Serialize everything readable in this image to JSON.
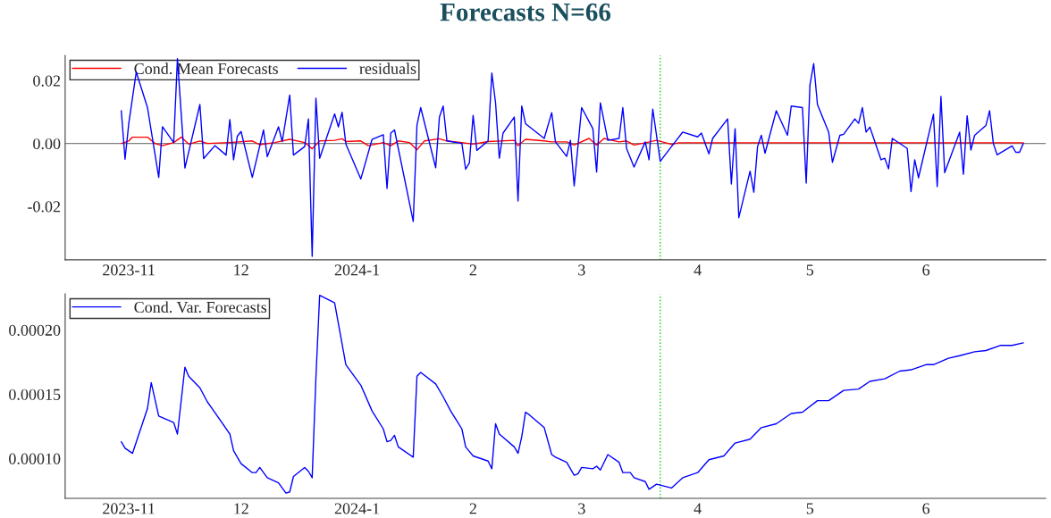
{
  "chart_data": [
    {
      "type": "line",
      "title": "Forecasts N=66",
      "legend": "top left",
      "grid": false,
      "marker": "none",
      "line_style": "solid",
      "xlim": [
        "2023-10-15",
        "2024-07-03"
      ],
      "xticks": [
        {
          "value": "2023-11-01",
          "label": "2023-11"
        },
        {
          "value": "2023-12-01",
          "label": "12"
        },
        {
          "value": "2024-01-01",
          "label": "2024-1"
        },
        {
          "value": "2024-02-01",
          "label": "2"
        },
        {
          "value": "2024-03-01",
          "label": "3"
        },
        {
          "value": "2024-04-01",
          "label": "4"
        },
        {
          "value": "2024-05-01",
          "label": "5"
        },
        {
          "value": "2024-06-01",
          "label": "6"
        }
      ],
      "ylim": [
        -0.037,
        0.028
      ],
      "yticks": [
        {
          "value": -0.02,
          "label": "-0.02"
        },
        {
          "value": 0,
          "label": "0.00"
        },
        {
          "value": 0.02,
          "label": "0.02"
        }
      ],
      "ref_lines": [
        {
          "axis": "y",
          "value": 0,
          "color": "#808080",
          "line_style": "solid"
        },
        {
          "axis": "x",
          "value": "2024-03-22",
          "color": "#00cc00",
          "line_style": "dotted"
        }
      ],
      "series": [
        {
          "name": "Cond. Mean Forecasts",
          "color": "#ff0000",
          "x": [
            "2023-10-30",
            "2023-11-01",
            "2023-11-02",
            "2023-11-06",
            "2023-11-08",
            "2023-11-10",
            "2023-11-13",
            "2023-11-15",
            "2023-11-17",
            "2023-11-20",
            "2023-11-22",
            "2023-11-28",
            "2023-12-04",
            "2023-12-06",
            "2023-12-10",
            "2023-12-14",
            "2023-12-18",
            "2023-12-20",
            "2023-12-22",
            "2023-12-26",
            "2023-12-28",
            "2023-12-29",
            "2024-01-02",
            "2024-01-04",
            "2024-01-08",
            "2024-01-10",
            "2024-01-12",
            "2024-01-15",
            "2024-01-17",
            "2024-01-19",
            "2024-01-23",
            "2024-01-25",
            "2024-01-29",
            "2024-02-01",
            "2024-02-05",
            "2024-02-12",
            "2024-02-13",
            "2024-02-15",
            "2024-02-20",
            "2024-02-22",
            "2024-02-26",
            "2024-02-28",
            "2024-03-03",
            "2024-03-05",
            "2024-03-07",
            "2024-03-11",
            "2024-03-13",
            "2024-03-15",
            "2024-03-18",
            "2024-03-21",
            "2024-03-25",
            "2024-03-27",
            "2024-06-27"
          ],
          "values": [
            0.0,
            0.0008,
            0.002,
            0.002,
            0.0,
            -0.0007,
            0.0003,
            0.002,
            -0.0002,
            0.0008,
            0.0,
            0.0003,
            0.0008,
            -0.0004,
            0.0003,
            0.0013,
            0.0003,
            -0.0017,
            0.0008,
            0.001,
            0.0015,
            0.0006,
            0.0008,
            -0.0007,
            0.0003,
            -0.0007,
            0.0008,
            0.0003,
            -0.002,
            0.0008,
            0.0015,
            0.0008,
            0.0003,
            -0.0002,
            0.0006,
            0.001,
            -0.0007,
            0.0013,
            0.0008,
            0.0005,
            0.0005,
            -0.0005,
            0.0016,
            -0.0005,
            0.0016,
            0.0005,
            0.0008,
            -0.0005,
            0.0002,
            0.001,
            -0.0003,
            0.0002,
            0.0002
          ]
        },
        {
          "name": "residuals",
          "color": "#0000ff",
          "x": [
            "2023-10-30",
            "2023-10-31",
            "2023-11-01",
            "2023-11-03",
            "2023-11-06",
            "2023-11-09",
            "2023-11-10",
            "2023-11-13",
            "2023-11-14",
            "2023-11-16",
            "2023-11-20",
            "2023-11-21",
            "2023-11-24",
            "2023-11-27",
            "2023-11-28",
            "2023-11-29",
            "2023-11-30",
            "2023-12-01",
            "2023-12-04",
            "2023-12-07",
            "2023-12-08",
            "2023-12-11",
            "2023-12-12",
            "2023-12-14",
            "2023-12-15",
            "2023-12-18",
            "2023-12-19",
            "2023-12-20",
            "2023-12-21",
            "2023-12-22",
            "2023-12-26",
            "2023-12-27",
            "2023-12-28",
            "2023-12-29",
            "2024-01-02",
            "2024-01-05",
            "2024-01-08",
            "2024-01-09",
            "2024-01-10",
            "2024-01-11",
            "2024-01-16",
            "2024-01-17",
            "2024-01-18",
            "2024-01-22",
            "2024-01-23",
            "2024-01-24",
            "2024-01-25",
            "2024-01-29",
            "2024-01-30",
            "2024-01-31",
            "2024-02-01",
            "2024-02-02",
            "2024-02-05",
            "2024-02-06",
            "2024-02-07",
            "2024-02-08",
            "2024-02-09",
            "2024-02-12",
            "2024-02-13",
            "2024-02-14",
            "2024-02-15",
            "2024-02-20",
            "2024-02-22",
            "2024-02-23",
            "2024-02-26",
            "2024-02-27",
            "2024-02-28",
            "2024-03-01",
            "2024-03-04",
            "2024-03-05",
            "2024-03-06",
            "2024-03-08",
            "2024-03-11",
            "2024-03-12",
            "2024-03-13",
            "2024-03-15",
            "2024-03-18",
            "2024-03-19",
            "2024-03-20",
            "2024-03-22",
            "2024-03-25",
            "2024-03-28",
            "2024-04-01",
            "2024-04-02",
            "2024-04-04",
            "2024-04-05",
            "2024-04-09",
            "2024-04-10",
            "2024-04-11",
            "2024-04-12",
            "2024-04-15",
            "2024-04-16",
            "2024-04-17",
            "2024-04-18",
            "2024-04-19",
            "2024-04-22",
            "2024-04-25",
            "2024-04-26",
            "2024-04-29",
            "2024-04-30",
            "2024-05-01",
            "2024-05-02",
            "2024-05-03",
            "2024-05-06",
            "2024-05-07",
            "2024-05-09",
            "2024-05-10",
            "2024-05-13",
            "2024-05-14",
            "2024-05-15",
            "2024-05-16",
            "2024-05-17",
            "2024-05-20",
            "2024-05-21",
            "2024-05-22",
            "2024-05-23",
            "2024-05-27",
            "2024-05-28",
            "2024-05-29",
            "2024-05-30",
            "2024-06-03",
            "2024-06-04",
            "2024-06-05",
            "2024-06-06",
            "2024-06-10",
            "2024-06-11",
            "2024-06-12",
            "2024-06-13",
            "2024-06-14",
            "2024-06-17",
            "2024-06-18",
            "2024-06-19",
            "2024-06-20",
            "2024-06-24",
            "2024-06-25",
            "2024-06-26",
            "2024-06-27"
          ],
          "values": [
            0.0104,
            -0.005,
            0.0064,
            0.0227,
            0.0114,
            -0.0108,
            0.0053,
            0.0003,
            0.027,
            -0.0078,
            0.0124,
            -0.0048,
            -0.0007,
            -0.0037,
            0.0076,
            -0.0052,
            0.0023,
            0.0038,
            -0.0108,
            0.0043,
            -0.0042,
            0.0053,
            0.0006,
            0.0154,
            -0.0037,
            -0.001,
            0.0078,
            -0.0359,
            0.0144,
            -0.0047,
            0.0094,
            0.0053,
            0.0099,
            -0.0002,
            -0.0113,
            0.0013,
            0.0028,
            -0.0143,
            0.0033,
            0.0043,
            -0.0248,
            0.0058,
            0.0114,
            -0.0077,
            0.0084,
            0.0119,
            0.0008,
            0.0,
            -0.0082,
            -0.0062,
            0.0089,
            -0.0022,
            0.0008,
            0.0224,
            0.0129,
            -0.0047,
            0.0033,
            0.0084,
            -0.0183,
            0.0119,
            0.0063,
            0.0016,
            0.0098,
            0.0005,
            -0.0041,
            0.001,
            -0.0135,
            0.0114,
            0.0047,
            -0.0091,
            0.0129,
            0.001,
            0.0016,
            0.0114,
            -0.0016,
            -0.0075,
            0.0005,
            -0.0052,
            0.0109,
            -0.0057,
            -0.001,
            0.0036,
            0.0021,
            0.0033,
            -0.0033,
            0.0016,
            0.0078,
            -0.0129,
            0.0047,
            -0.0236,
            -0.0088,
            -0.0155,
            -0.001,
            0.0026,
            -0.0031,
            0.0104,
            0.0026,
            0.0119,
            0.0114,
            -0.0126,
            0.0186,
            0.0254,
            0.0124,
            0.0036,
            -0.006,
            0.0026,
            0.0029,
            0.0078,
            0.0064,
            0.0114,
            0.0036,
            0.0052,
            -0.0052,
            -0.0047,
            -0.0081,
            0.0016,
            -0.0016,
            -0.0153,
            -0.0052,
            -0.0109,
            0.0093,
            -0.0137,
            0.015,
            -0.0093,
            0.0036,
            -0.0098,
            0.0088,
            -0.0021,
            0.0026,
            0.0057,
            0.0104,
            0.0,
            -0.0036,
            -0.0008,
            -0.0028,
            -0.0028,
            0.0
          ]
        }
      ]
    },
    {
      "type": "line",
      "legend": "top left",
      "grid": false,
      "marker": "none",
      "line_style": "solid",
      "xlim": [
        "2023-10-15",
        "2024-07-03"
      ],
      "xticks": [
        {
          "value": "2023-11-01",
          "label": "2023-11"
        },
        {
          "value": "2023-12-01",
          "label": "12"
        },
        {
          "value": "2024-01-01",
          "label": "2024-1"
        },
        {
          "value": "2024-02-01",
          "label": "2"
        },
        {
          "value": "2024-03-01",
          "label": "3"
        },
        {
          "value": "2024-04-01",
          "label": "4"
        },
        {
          "value": "2024-05-01",
          "label": "5"
        },
        {
          "value": "2024-06-01",
          "label": "6"
        }
      ],
      "ylim": [
        6.9e-05,
        0.000228
      ],
      "yticks": [
        {
          "value": 0.0001,
          "label": "0.00010"
        },
        {
          "value": 0.00015,
          "label": "0.00015"
        },
        {
          "value": 0.0002,
          "label": "0.00020"
        }
      ],
      "ref_lines": [
        {
          "axis": "x",
          "value": "2024-03-22",
          "color": "#00cc00",
          "line_style": "dotted"
        }
      ],
      "series": [
        {
          "name": "Cond. Var. Forecasts",
          "color": "#0000ff",
          "x": [
            "2023-10-30",
            "2023-10-31",
            "2023-11-02",
            "2023-11-06",
            "2023-11-07",
            "2023-11-09",
            "2023-11-13",
            "2023-11-14",
            "2023-11-16",
            "2023-11-17",
            "2023-11-20",
            "2023-11-22",
            "2023-11-23",
            "2023-11-28",
            "2023-11-29",
            "2023-12-01",
            "2023-12-04",
            "2023-12-05",
            "2023-12-06",
            "2023-12-08",
            "2023-12-11",
            "2023-12-13",
            "2023-12-14",
            "2023-12-15",
            "2023-12-18",
            "2023-12-19",
            "2023-12-20",
            "2023-12-21",
            "2023-12-22",
            "2023-12-26",
            "2023-12-29",
            "2024-01-02",
            "2024-01-05",
            "2024-01-08",
            "2024-01-09",
            "2024-01-10",
            "2024-01-11",
            "2024-01-12",
            "2024-01-16",
            "2024-01-17",
            "2024-01-18",
            "2024-01-22",
            "2024-01-24",
            "2024-01-26",
            "2024-01-29",
            "2024-01-30",
            "2024-02-01",
            "2024-02-05",
            "2024-02-06",
            "2024-02-07",
            "2024-02-08",
            "2024-02-12",
            "2024-02-13",
            "2024-02-14",
            "2024-02-15",
            "2024-02-16",
            "2024-02-20",
            "2024-02-22",
            "2024-02-23",
            "2024-02-26",
            "2024-02-28",
            "2024-02-29",
            "2024-03-01",
            "2024-03-04",
            "2024-03-05",
            "2024-03-06",
            "2024-03-08",
            "2024-03-11",
            "2024-03-12",
            "2024-03-14",
            "2024-03-15",
            "2024-03-18",
            "2024-03-19",
            "2024-03-21",
            "2024-03-25",
            "2024-03-28",
            "2024-04-01",
            "2024-04-04",
            "2024-04-08",
            "2024-04-11",
            "2024-04-15",
            "2024-04-18",
            "2024-04-22",
            "2024-04-26",
            "2024-04-29",
            "2024-05-03",
            "2024-05-06",
            "2024-05-10",
            "2024-05-14",
            "2024-05-17",
            "2024-05-21",
            "2024-05-25",
            "2024-05-28",
            "2024-06-01",
            "2024-06-03",
            "2024-06-07",
            "2024-06-10",
            "2024-06-14",
            "2024-06-17",
            "2024-06-21",
            "2024-06-24",
            "2024-06-27"
          ],
          "values": [
            0.000113,
            0.000108,
            0.000104,
            0.000139,
            0.000159,
            0.000133,
            0.000128,
            0.000119,
            0.000171,
            0.000164,
            0.000155,
            0.000144,
            0.00014,
            0.000119,
            0.000106,
            9.6e-05,
            8.9e-05,
            8.9e-05,
            9.3e-05,
            8.5e-05,
            8.1e-05,
            7.3e-05,
            7.4e-05,
            8.6e-05,
            9.3e-05,
            9e-05,
            8.5e-05,
            0.000163,
            0.000227,
            0.000221,
            0.000173,
            0.000157,
            0.000137,
            0.000123,
            0.000113,
            0.000114,
            0.000118,
            0.000109,
            0.000101,
            0.000164,
            0.000167,
            0.000158,
            0.000148,
            0.000137,
            0.000123,
            0.000109,
            0.000102,
            9.8e-05,
            9.2e-05,
            0.000127,
            0.000119,
            0.000109,
            0.000104,
            0.000117,
            0.000136,
            0.000134,
            0.000124,
            0.000103,
            0.000101,
            9.7e-05,
            8.7e-05,
            8.8e-05,
            9.3e-05,
            9.2e-05,
            9.4e-05,
            9.1e-05,
            0.000103,
            9.7e-05,
            8.9e-05,
            8.9e-05,
            8.5e-05,
            8.2e-05,
            7.6e-05,
            8e-05,
            7.7e-05,
            8.5e-05,
            8.9e-05,
            9.9e-05,
            0.000102,
            0.000112,
            0.000115,
            0.000124,
            0.000127,
            0.000135,
            0.000136,
            0.000145,
            0.000145,
            0.000153,
            0.000154,
            0.00016,
            0.000162,
            0.000168,
            0.000169,
            0.000173,
            0.000173,
            0.000178,
            0.00018,
            0.000183,
            0.000184,
            0.000188,
            0.000188,
            0.00019
          ]
        }
      ]
    }
  ]
}
